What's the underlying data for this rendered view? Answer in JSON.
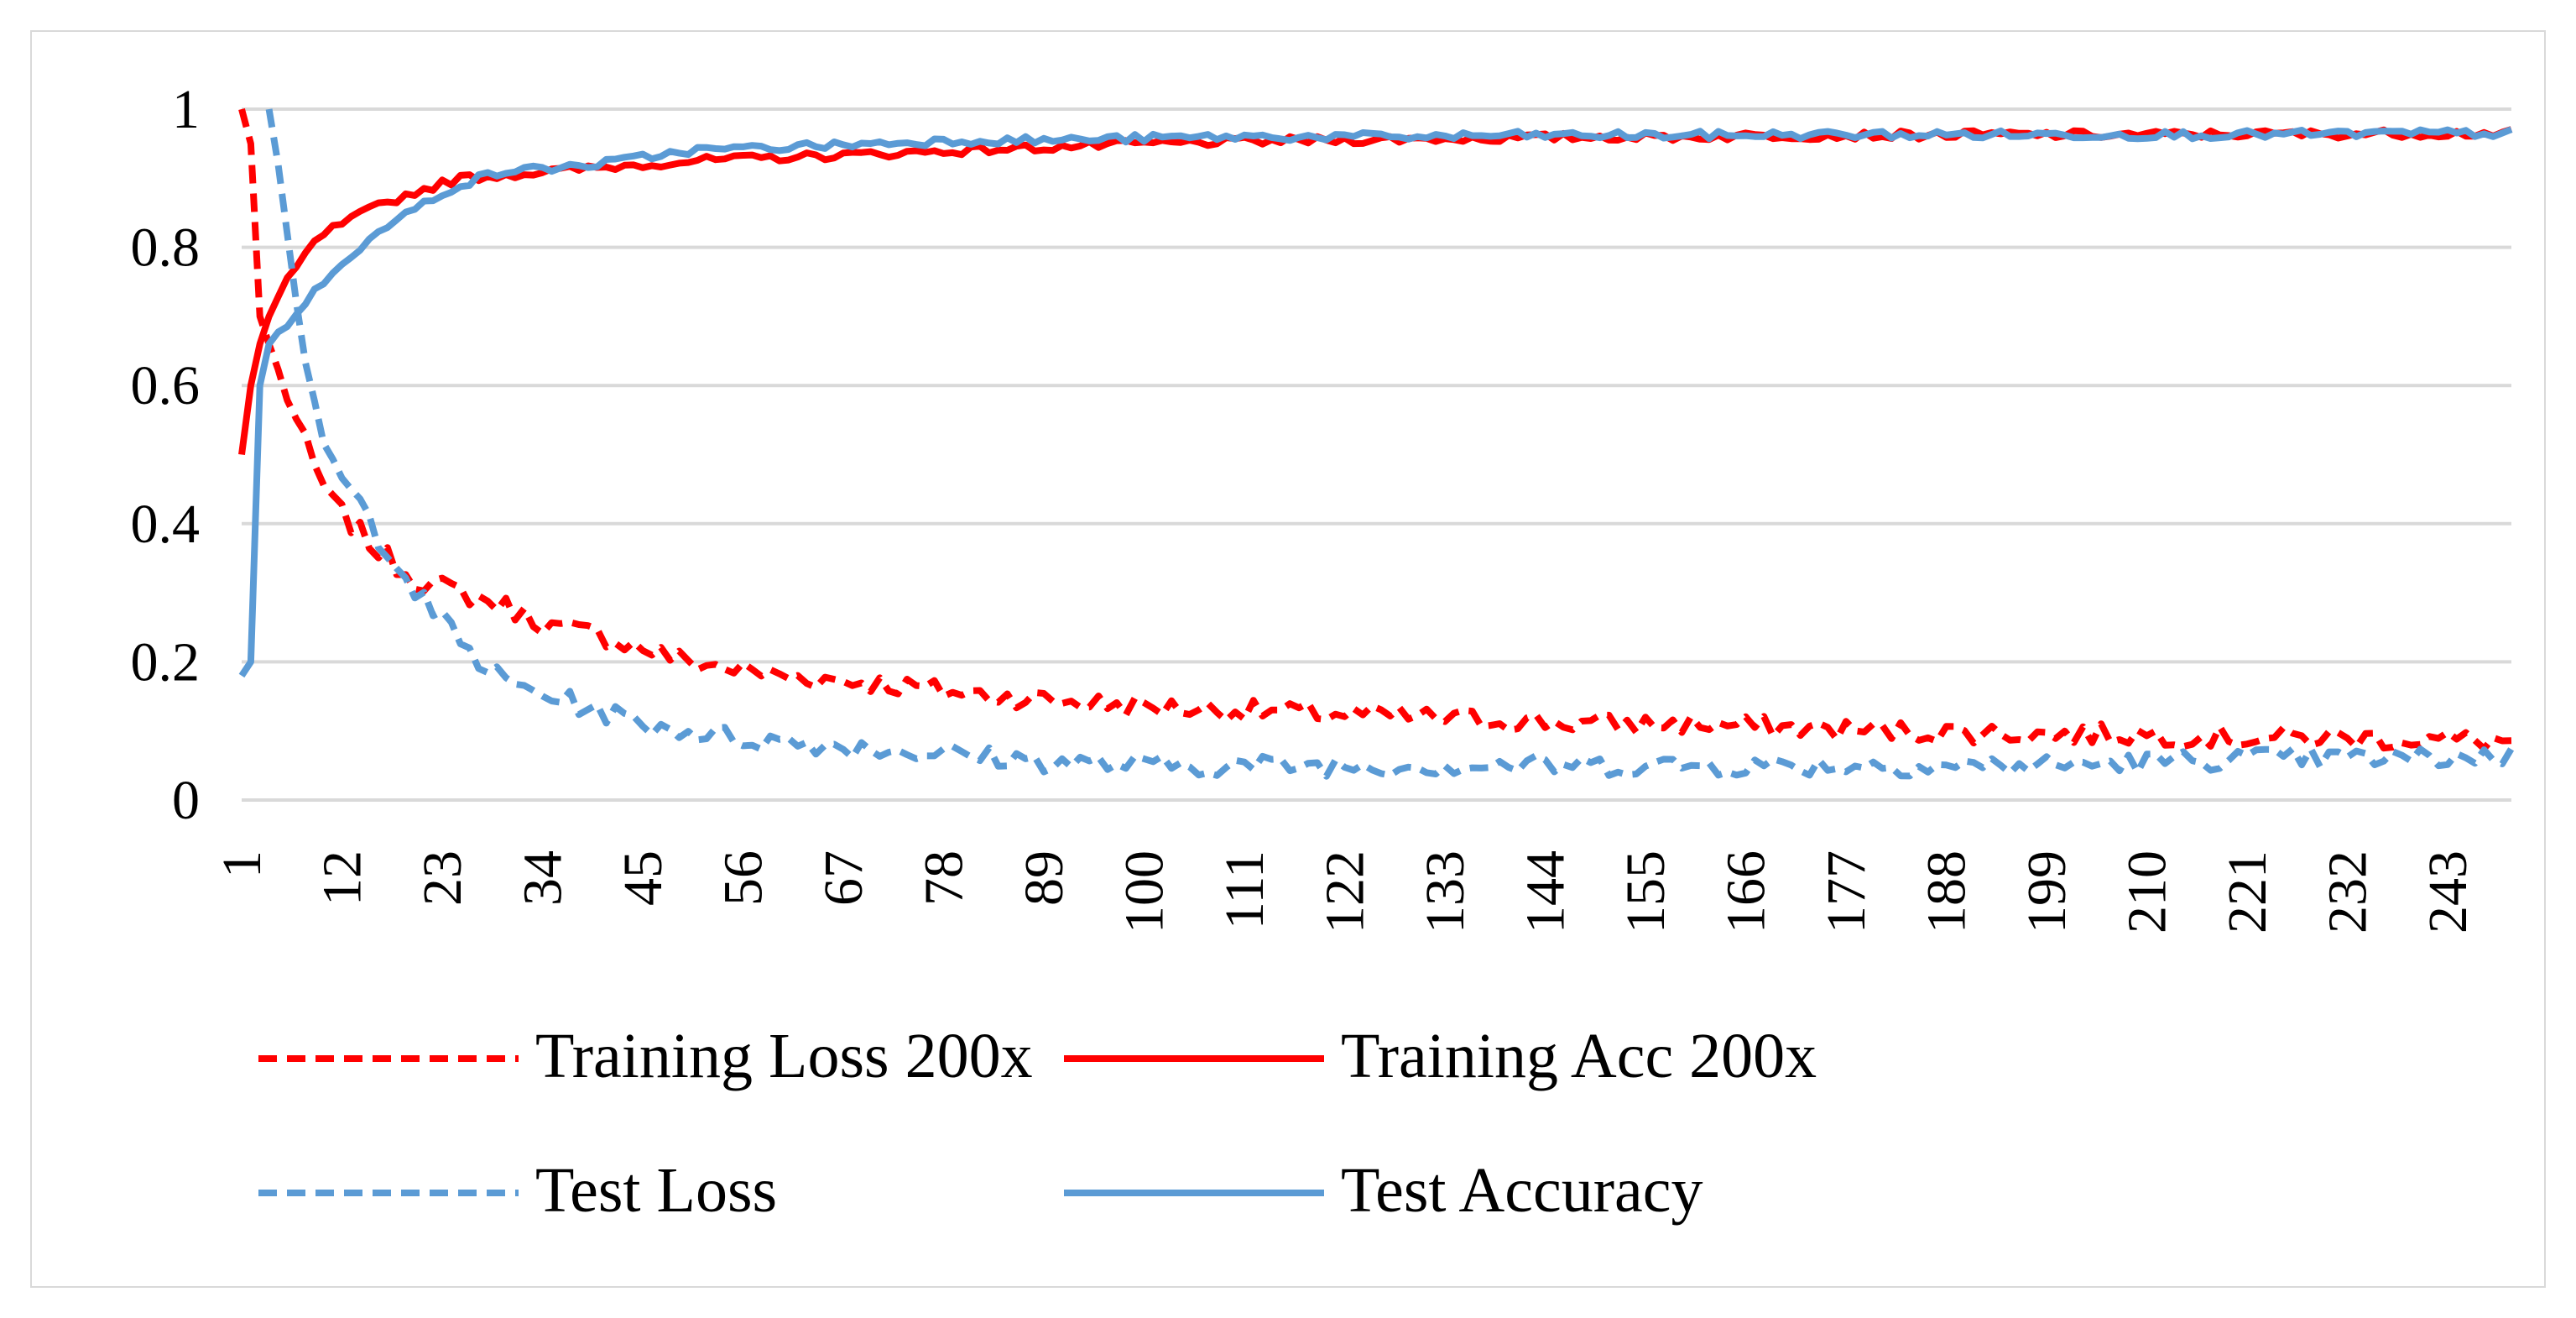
{
  "chart_data": {
    "type": "line",
    "title": "",
    "xlabel": "",
    "ylabel": "",
    "x_range": [
      1,
      250
    ],
    "ylim": [
      0,
      1
    ],
    "y_ticks": [
      "0",
      "0.2",
      "0.4",
      "0.6",
      "0.8",
      "1"
    ],
    "x_ticks": [
      "1",
      "12",
      "23",
      "34",
      "45",
      "56",
      "67",
      "78",
      "89",
      "100",
      "111",
      "122",
      "133",
      "144",
      "155",
      "166",
      "177",
      "188",
      "199",
      "210",
      "221",
      "232",
      "243"
    ],
    "grid": true,
    "legend_position": "bottom",
    "series": [
      {
        "name": "Training Loss 200x",
        "color": "#ff0000",
        "style": "dashed",
        "key_points": [
          [
            1,
            1.0
          ],
          [
            2,
            0.95
          ],
          [
            3,
            0.7
          ],
          [
            5,
            0.62
          ],
          [
            7,
            0.55
          ],
          [
            9,
            0.48
          ],
          [
            11,
            0.43
          ],
          [
            13,
            0.4
          ],
          [
            16,
            0.36
          ],
          [
            20,
            0.32
          ],
          [
            25,
            0.3
          ],
          [
            30,
            0.28
          ],
          [
            35,
            0.25
          ],
          [
            40,
            0.24
          ],
          [
            45,
            0.22
          ],
          [
            50,
            0.2
          ],
          [
            60,
            0.18
          ],
          [
            70,
            0.17
          ],
          [
            80,
            0.155
          ],
          [
            90,
            0.145
          ],
          [
            100,
            0.135
          ],
          [
            110,
            0.13
          ],
          [
            120,
            0.125
          ],
          [
            130,
            0.12
          ],
          [
            140,
            0.115
          ],
          [
            150,
            0.11
          ],
          [
            160,
            0.11
          ],
          [
            170,
            0.105
          ],
          [
            180,
            0.1
          ],
          [
            190,
            0.098
          ],
          [
            200,
            0.095
          ],
          [
            210,
            0.095
          ],
          [
            220,
            0.09
          ],
          [
            230,
            0.09
          ],
          [
            240,
            0.088
          ],
          [
            250,
            0.085
          ]
        ]
      },
      {
        "name": "Training Acc 200x",
        "color": "#ff0000",
        "style": "solid",
        "key_points": [
          [
            1,
            0.5
          ],
          [
            2,
            0.6
          ],
          [
            3,
            0.66
          ],
          [
            4,
            0.7
          ],
          [
            6,
            0.75
          ],
          [
            8,
            0.79
          ],
          [
            10,
            0.82
          ],
          [
            13,
            0.84
          ],
          [
            16,
            0.86
          ],
          [
            20,
            0.88
          ],
          [
            25,
            0.9
          ],
          [
            30,
            0.905
          ],
          [
            35,
            0.91
          ],
          [
            40,
            0.915
          ],
          [
            45,
            0.92
          ],
          [
            50,
            0.925
          ],
          [
            60,
            0.93
          ],
          [
            70,
            0.935
          ],
          [
            80,
            0.94
          ],
          [
            90,
            0.945
          ],
          [
            100,
            0.95
          ],
          [
            110,
            0.953
          ],
          [
            120,
            0.955
          ],
          [
            130,
            0.957
          ],
          [
            140,
            0.958
          ],
          [
            150,
            0.96
          ],
          [
            160,
            0.96
          ],
          [
            170,
            0.962
          ],
          [
            180,
            0.962
          ],
          [
            190,
            0.963
          ],
          [
            200,
            0.963
          ],
          [
            210,
            0.963
          ],
          [
            220,
            0.964
          ],
          [
            230,
            0.964
          ],
          [
            240,
            0.965
          ],
          [
            250,
            0.965
          ]
        ]
      },
      {
        "name": "Test Loss",
        "color": "#5b9bd5",
        "style": "dashed",
        "key_points": [
          [
            4,
            1.0
          ],
          [
            5,
            0.92
          ],
          [
            6,
            0.82
          ],
          [
            7,
            0.72
          ],
          [
            8,
            0.62
          ],
          [
            10,
            0.52
          ],
          [
            12,
            0.46
          ],
          [
            14,
            0.43
          ],
          [
            16,
            0.38
          ],
          [
            18,
            0.35
          ],
          [
            20,
            0.3
          ],
          [
            23,
            0.26
          ],
          [
            27,
            0.2
          ],
          [
            30,
            0.17
          ],
          [
            35,
            0.15
          ],
          [
            40,
            0.13
          ],
          [
            45,
            0.11
          ],
          [
            50,
            0.1
          ],
          [
            55,
            0.09
          ],
          [
            60,
            0.085
          ],
          [
            70,
            0.075
          ],
          [
            80,
            0.065
          ],
          [
            90,
            0.055
          ],
          [
            100,
            0.05
          ],
          [
            110,
            0.05
          ],
          [
            120,
            0.05
          ],
          [
            130,
            0.05
          ],
          [
            140,
            0.05
          ],
          [
            150,
            0.05
          ],
          [
            160,
            0.05
          ],
          [
            170,
            0.05
          ],
          [
            180,
            0.05
          ],
          [
            190,
            0.05
          ],
          [
            200,
            0.05
          ],
          [
            210,
            0.055
          ],
          [
            220,
            0.06
          ],
          [
            230,
            0.06
          ],
          [
            240,
            0.06
          ],
          [
            250,
            0.065
          ]
        ]
      },
      {
        "name": "Test Accuracy",
        "color": "#5b9bd5",
        "style": "solid",
        "key_points": [
          [
            1,
            0.18
          ],
          [
            2,
            0.2
          ],
          [
            3,
            0.6
          ],
          [
            4,
            0.66
          ],
          [
            6,
            0.69
          ],
          [
            8,
            0.72
          ],
          [
            10,
            0.75
          ],
          [
            12,
            0.78
          ],
          [
            14,
            0.8
          ],
          [
            17,
            0.83
          ],
          [
            20,
            0.855
          ],
          [
            23,
            0.88
          ],
          [
            27,
            0.9
          ],
          [
            30,
            0.91
          ],
          [
            35,
            0.915
          ],
          [
            40,
            0.92
          ],
          [
            45,
            0.93
          ],
          [
            50,
            0.94
          ],
          [
            60,
            0.945
          ],
          [
            70,
            0.95
          ],
          [
            80,
            0.955
          ],
          [
            90,
            0.955
          ],
          [
            100,
            0.958
          ],
          [
            110,
            0.96
          ],
          [
            120,
            0.96
          ],
          [
            130,
            0.96
          ],
          [
            140,
            0.962
          ],
          [
            150,
            0.962
          ],
          [
            160,
            0.962
          ],
          [
            170,
            0.963
          ],
          [
            180,
            0.963
          ],
          [
            190,
            0.963
          ],
          [
            200,
            0.963
          ],
          [
            210,
            0.963
          ],
          [
            220,
            0.963
          ],
          [
            230,
            0.964
          ],
          [
            240,
            0.965
          ],
          [
            250,
            0.965
          ]
        ]
      }
    ]
  }
}
